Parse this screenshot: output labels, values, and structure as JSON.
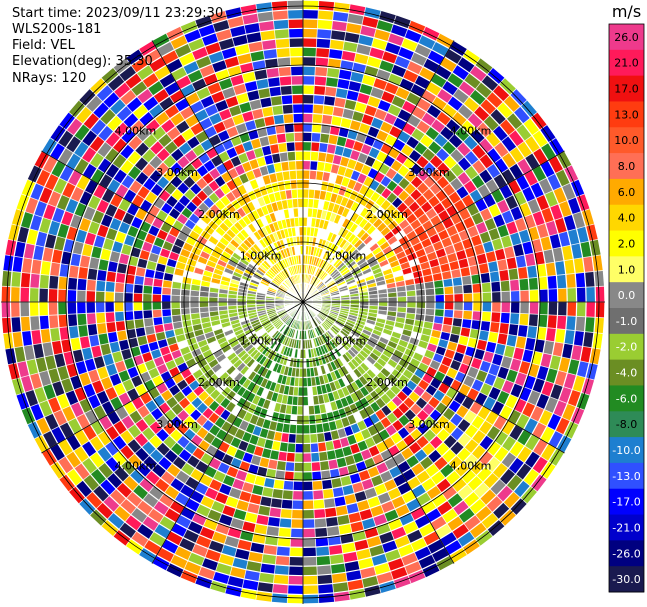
{
  "header": {
    "start_time": "Start time: 2023/09/11 23:29:30",
    "instrument": "WLS200s-181",
    "field": "Field: VEL",
    "elevation": "Elevation(deg): 35.30",
    "nrays": "NRays: 120"
  },
  "colorbar": {
    "unit": "m/s",
    "ticks": [
      "26.0",
      "21.0",
      "17.0",
      "13.0",
      "10.0",
      "8.0",
      "6.0",
      "4.0",
      "2.0",
      "1.0",
      "0.0",
      "-1.0",
      "-2.0",
      "-4.0",
      "-6.0",
      "-8.0",
      "-10.0",
      "-13.0",
      "-17.0",
      "-21.0",
      "-26.0",
      "-30.0"
    ],
    "colors": [
      "#ee3a8c",
      "#ff1a5a",
      "#f01010",
      "#ff3c10",
      "#ff5a2a",
      "#ff6f55",
      "#ffaa00",
      "#ffd700",
      "#ffff00",
      "#ffff66",
      "#888888",
      "#6f6f6f",
      "#9acd32",
      "#6b8e23",
      "#228b22",
      "#2e8b57",
      "#1e7fd0",
      "#3050ff",
      "#0000ff",
      "#0000cc",
      "#000080",
      "#1a1a50"
    ]
  },
  "chart_data": {
    "type": "heatmap",
    "projection": "polar (PPI)",
    "field": "VEL",
    "unit": "m/s",
    "n_rays": 120,
    "n_rings": 32,
    "range_labels": [
      "1.00km",
      "1.00km",
      "1.00km",
      "1.00km",
      "2.00km",
      "2.00km",
      "2.00km",
      "2.00km",
      "3.00km",
      "3.00km",
      "3.00km",
      "3.00km",
      "4.00km",
      "4.00km",
      "4.00km",
      "4.00km"
    ],
    "grid_rings_km": [
      1,
      2,
      3,
      4,
      5
    ],
    "grid_spokes_deg": [
      0,
      30,
      60,
      90,
      120,
      150,
      180,
      210,
      240,
      270,
      300,
      330
    ],
    "colorscale_min": -30.0,
    "colorscale_max": 26.0
  }
}
